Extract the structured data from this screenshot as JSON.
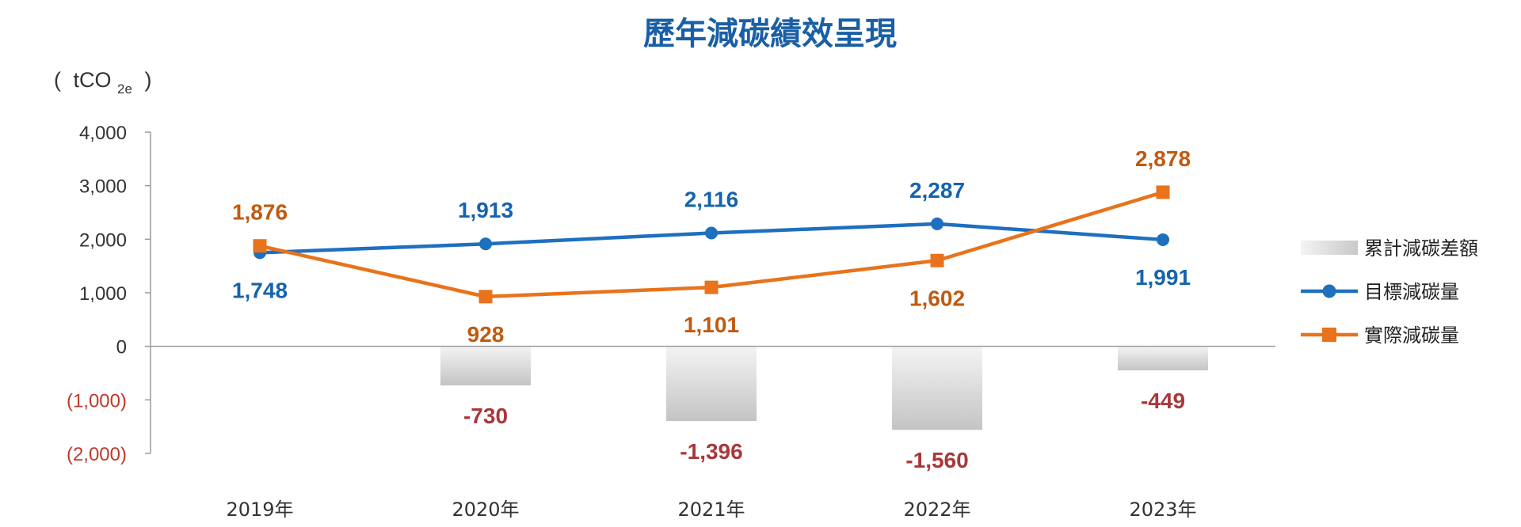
{
  "chart_data": {
    "type": "bar",
    "title": "歷年減碳績效呈現",
    "ylabel": {
      "open": "(",
      "unit": "tCO",
      "sub": "2e",
      "close": ")"
    },
    "ylim": [
      -2000,
      4000
    ],
    "yticks": [
      {
        "value": 4000,
        "label": "4,000",
        "negative": false
      },
      {
        "value": 3000,
        "label": "3,000",
        "negative": false
      },
      {
        "value": 2000,
        "label": "2,000",
        "negative": false
      },
      {
        "value": 1000,
        "label": "1,000",
        "negative": false
      },
      {
        "value": 0,
        "label": "0",
        "negative": false
      },
      {
        "value": -1000,
        "label": "(1,000)",
        "negative": true
      },
      {
        "value": -2000,
        "label": "(2,000)",
        "negative": true
      }
    ],
    "categories": [
      "2019年",
      "2020年",
      "2021年",
      "2022年",
      "2023年"
    ],
    "grid": false,
    "legend_position": "right",
    "series": [
      {
        "name": "累計減碳差額",
        "kind": "bar",
        "color": "#cccccc",
        "label_color": "#a8383c",
        "values": [
          null,
          -730,
          -1396,
          -1560,
          -449
        ],
        "labels": [
          "",
          "-730",
          "-1,396",
          "-1,560",
          "-449"
        ]
      },
      {
        "name": "目標減碳量",
        "kind": "line",
        "marker": "circle",
        "color": "#1f6fbf",
        "label_color": "#1563ad",
        "values": [
          1748,
          1913,
          2116,
          2287,
          1991
        ],
        "labels": [
          "1,748",
          "1,913",
          "2,116",
          "2,287",
          "1,991"
        ]
      },
      {
        "name": "實際減碳量",
        "kind": "line",
        "marker": "square",
        "color": "#e8731c",
        "label_color": "#c05a10",
        "values": [
          1876,
          928,
          1101,
          1602,
          2878
        ],
        "labels": [
          "1,876",
          "928",
          "1,101",
          "1,602",
          "2,878"
        ]
      }
    ]
  }
}
